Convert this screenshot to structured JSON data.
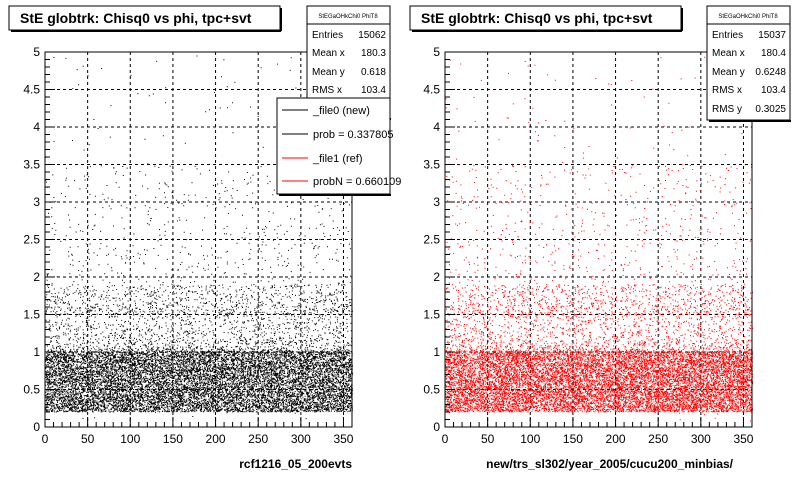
{
  "footer_text": "",
  "chart_data": [
    {
      "type": "scatter",
      "title": "StE globtrk: Chisq0 vs phi, tpc+svt",
      "xlabel": "rcf1216_05_200evts",
      "ylabel": "",
      "xlim": [
        0,
        360
      ],
      "ylim": [
        0,
        5
      ],
      "x_ticks": [
        "0",
        "50",
        "100",
        "150",
        "200",
        "250",
        "300",
        "350"
      ],
      "y_ticks": [
        "0",
        "0.5",
        "1",
        "1.5",
        "2",
        "2.5",
        "3",
        "3.5",
        "4",
        "4.5",
        "5"
      ],
      "grid": true,
      "marker_color": "#000000",
      "stats": {
        "title": "StEGaOHkChi0 PhiT8",
        "rows": [
          {
            "label": "Entries",
            "value": "15062"
          },
          {
            "label": "Mean x",
            "value": "180.3"
          },
          {
            "label": "Mean y",
            "value": "0.618"
          },
          {
            "label": "RMS x",
            "value": "103.4"
          }
        ]
      },
      "legend": [
        {
          "label": "_file0 (new)",
          "color": "#000000"
        },
        {
          "label": "prob = 0.337805",
          "color": "#000000"
        },
        {
          "label": "_file1 (ref)",
          "color": "#ff0000"
        },
        {
          "label": "probN = 0.660109",
          "color": "#ff0000"
        }
      ],
      "distribution": {
        "entries": 15062,
        "core_y_range": [
          0.2,
          1.0
        ],
        "tail_y_max": 5
      }
    },
    {
      "type": "scatter",
      "title": "StE globtrk: Chisq0 vs phi, tpc+svt",
      "xlabel": "new/trs_sl302/year_2005/cucu200_minbias/",
      "ylabel": "",
      "xlim": [
        0,
        360
      ],
      "ylim": [
        0,
        5
      ],
      "x_ticks": [
        "0",
        "50",
        "100",
        "150",
        "200",
        "250",
        "300",
        "350"
      ],
      "y_ticks": [
        "0",
        "0.5",
        "1",
        "1.5",
        "2",
        "2.5",
        "3",
        "3.5",
        "4",
        "4.5",
        "5"
      ],
      "grid": true,
      "marker_color": "#ff0000",
      "stats": {
        "title": "StEGaOHkChi0 PhiT8",
        "rows": [
          {
            "label": "Entries",
            "value": "15037"
          },
          {
            "label": "Mean x",
            "value": "180.4"
          },
          {
            "label": "Mean y",
            "value": "0.6248"
          },
          {
            "label": "RMS x",
            "value": "103.4"
          },
          {
            "label": "RMS y",
            "value": "0.3025"
          }
        ]
      },
      "distribution": {
        "entries": 15037,
        "core_y_range": [
          0.2,
          1.0
        ],
        "tail_y_max": 5
      }
    }
  ]
}
